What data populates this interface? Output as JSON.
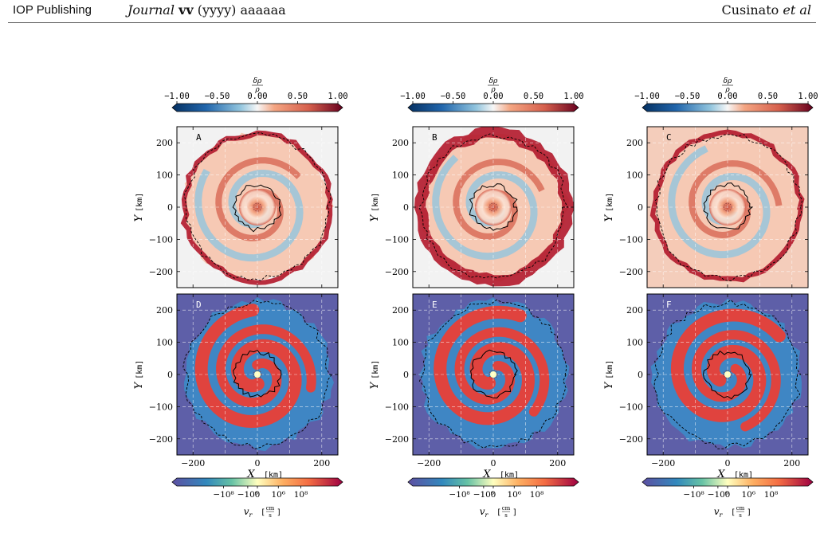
{
  "header": {
    "publisher": "IOP Publishing",
    "journal_italic": "Journal",
    "volume_bold": "vv",
    "year": "(yyyy)",
    "article": "aaaaaa",
    "authors": "Cusinato",
    "et_al": "et al"
  },
  "footer": {
    "page_ref": ""
  },
  "figure": {
    "colors": {
      "rho_low": "#2166ac",
      "rho_mid": "#f7f7f7",
      "rho_high": "#8b0a1a",
      "vr_low": "#5e4fa2",
      "vr_mid": "#ffffbf",
      "vr_high": "#9e0142",
      "vr_blue_bg": "#3a7dc0",
      "vr_red": "#e0433e",
      "frame": "#000000"
    },
    "top_colorbar": {
      "label_num": "δρ",
      "label_den": "ρ",
      "ticks": [
        "−1.00",
        "−0.50",
        "0.00",
        "0.50",
        "1.00"
      ],
      "range": [
        -1,
        1
      ]
    },
    "bottom_colorbar": {
      "label": "v",
      "label_sub": "r",
      "unit_num": "cm",
      "unit_den": "s",
      "ticks": [
        "−10⁸",
        "−10⁶",
        "0",
        "10⁶",
        "10⁸"
      ]
    },
    "axes": {
      "xlabel": "X",
      "ylabel": "Y",
      "unit": "[km]",
      "ticks": [
        200,
        100,
        0,
        -100,
        -200
      ],
      "xticks": [
        -200,
        0,
        200
      ],
      "xtick_labels": [
        "−200",
        "0",
        "200"
      ],
      "ytick_labels": [
        "200",
        "100",
        "0",
        "−100",
        "−200"
      ],
      "range": [
        -250,
        250
      ]
    },
    "panels": [
      {
        "label": "A",
        "row": "density"
      },
      {
        "label": "B",
        "row": "density"
      },
      {
        "label": "C",
        "row": "density"
      },
      {
        "label": "D",
        "row": "velocity"
      },
      {
        "label": "E",
        "row": "velocity"
      },
      {
        "label": "F",
        "row": "velocity"
      }
    ]
  }
}
